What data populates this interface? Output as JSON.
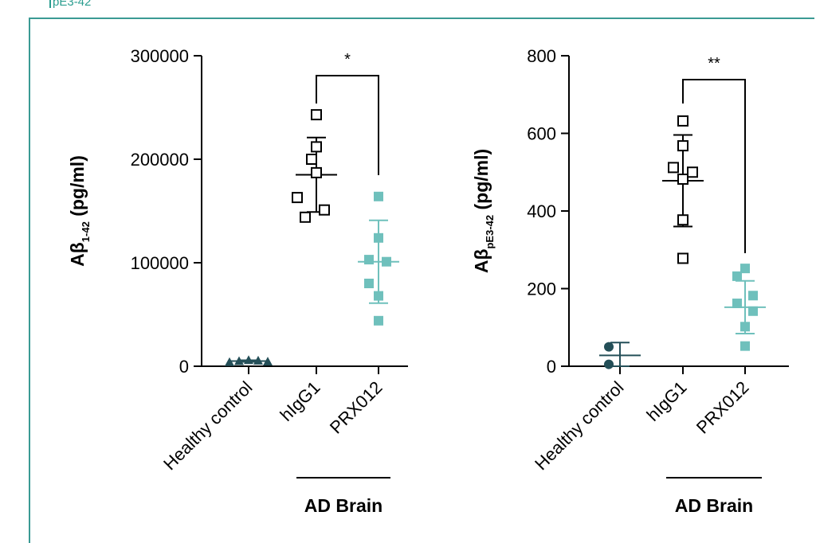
{
  "corner_label": "pE3-42",
  "colors": {
    "dark": "#244f58",
    "teal": "#6fc0bc",
    "black": "#000000"
  },
  "chart_data": [
    {
      "type": "scatter",
      "ylabel_main": "Aβ",
      "ylabel_sub": "1-42",
      "ylabel_unit": " (pg/ml)",
      "ylim": [
        0,
        300000
      ],
      "yticks": [
        0,
        100000,
        200000,
        300000
      ],
      "ytick_labels": [
        "0",
        "100000",
        "200000",
        "300000"
      ],
      "categories": [
        "Healthy control",
        "hIgG1",
        "PRX012"
      ],
      "group_label": "AD Brain",
      "significance": "*",
      "series": [
        {
          "category": "Healthy control",
          "marker": "triangle",
          "color": "#244f58",
          "points": [
            4000,
            5000,
            6000,
            5500,
            4500
          ],
          "mean": 5000,
          "sd": 800
        },
        {
          "category": "hIgG1",
          "marker": "open-square",
          "color": "#000000",
          "points": [
            243000,
            212000,
            200000,
            187000,
            163000,
            151000,
            144000
          ],
          "mean": 185000,
          "sd": 36000
        },
        {
          "category": "PRX012",
          "marker": "filled-square",
          "color": "#6fc0bc",
          "points": [
            164000,
            124000,
            103000,
            101000,
            80000,
            68000,
            44000
          ],
          "mean": 101000,
          "sd": 40000
        }
      ]
    },
    {
      "type": "scatter",
      "ylabel_main": "Aβ",
      "ylabel_sub": "pE3-42",
      "ylabel_unit": " (pg/ml)",
      "ylim": [
        0,
        800
      ],
      "yticks": [
        0,
        200,
        400,
        600,
        800
      ],
      "ytick_labels": [
        "0",
        "200",
        "400",
        "600",
        "800"
      ],
      "categories": [
        "Healthy control",
        "hIgG1",
        "PRX012"
      ],
      "group_label": "AD Brain",
      "significance": "**",
      "series": [
        {
          "category": "Healthy control",
          "marker": "filled-circle",
          "color": "#244f58",
          "points": [
            50,
            5
          ],
          "mean": 28,
          "sd": 33
        },
        {
          "category": "hIgG1",
          "marker": "open-square",
          "color": "#000000",
          "points": [
            632,
            568,
            512,
            500,
            482,
            377,
            278
          ],
          "mean": 478,
          "sd": 118
        },
        {
          "category": "PRX012",
          "marker": "filled-square",
          "color": "#6fc0bc",
          "points": [
            252,
            232,
            182,
            162,
            142,
            102,
            52
          ],
          "mean": 152,
          "sd": 68
        }
      ]
    }
  ]
}
